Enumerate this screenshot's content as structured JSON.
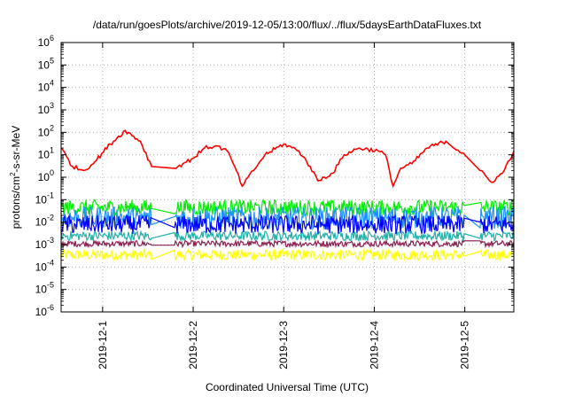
{
  "chart_data": {
    "type": "line",
    "title": "/data/run/goesPlots/archive/2019-12-05/13:00/flux/../flux/5daysEarthDataFluxes.txt",
    "xlabel": "Coordinated Universal Time (UTC)",
    "ylabel": "protons/cm²-s-sr-MeV",
    "ylabel_parts": {
      "pre": "protons/cm",
      "sup": "2",
      "post": "-s-sr-MeV"
    },
    "yscale": "log",
    "ylim": [
      1e-06,
      1000000.0
    ],
    "y_ticks": [
      {
        "base": "10",
        "exp": "-6"
      },
      {
        "base": "10",
        "exp": "-5"
      },
      {
        "base": "10",
        "exp": "-4"
      },
      {
        "base": "10",
        "exp": "-3"
      },
      {
        "base": "10",
        "exp": "-2"
      },
      {
        "base": "10",
        "exp": "-1"
      },
      {
        "base": "10",
        "exp": "0"
      },
      {
        "base": "10",
        "exp": "1"
      },
      {
        "base": "10",
        "exp": "2"
      },
      {
        "base": "10",
        "exp": "3"
      },
      {
        "base": "10",
        "exp": "4"
      },
      {
        "base": "10",
        "exp": "5"
      },
      {
        "base": "10",
        "exp": "6"
      }
    ],
    "xlim": [
      "2019-11-30 13:00",
      "2019-12-05 13:00"
    ],
    "x_ticks": [
      "2019-12-1",
      "2019-12-2",
      "2019-12-3",
      "2019-12-4",
      "2019-12-5"
    ],
    "grid": true,
    "series": [
      {
        "color": "#ff0000",
        "x": [
          "2019-11-30 13:00",
          "2019-11-30 16:00",
          "2019-11-30 19:00",
          "2019-11-30 22:00",
          "2019-12-01 02:00",
          "2019-12-01 06:00",
          "2019-12-01 10:00",
          "2019-12-01 13:00",
          "2019-12-01 19:00",
          "2019-12-02 00:00",
          "2019-12-02 03:00",
          "2019-12-02 06:00",
          "2019-12-02 09:00",
          "2019-12-02 11:00",
          "2019-12-02 13:00",
          "2019-12-02 16:00",
          "2019-12-02 19:00",
          "2019-12-03 00:00",
          "2019-12-03 04:00",
          "2019-12-03 07:00",
          "2019-12-03 09:00",
          "2019-12-03 13:00",
          "2019-12-03 16:00",
          "2019-12-03 20:00",
          "2019-12-04 01:00",
          "2019-12-04 03:00",
          "2019-12-04 05:00",
          "2019-12-04 07:00",
          "2019-12-04 10:00",
          "2019-12-04 14:00",
          "2019-12-04 19:00",
          "2019-12-05 00:00",
          "2019-12-05 04:00",
          "2019-12-05 07:00",
          "2019-12-05 10:00",
          "2019-12-05 13:00"
        ],
        "values": [
          20,
          3,
          2,
          5,
          30,
          120,
          40,
          3,
          2.5,
          7,
          20,
          25,
          15,
          3,
          0.4,
          2,
          10,
          30,
          15,
          3,
          0.7,
          1.5,
          10,
          20,
          15,
          10,
          0.4,
          2.5,
          4,
          20,
          40,
          10,
          2,
          0.6,
          1.5,
          15
        ]
      },
      {
        "color": "#00ee00",
        "band": [
          0.02,
          0.1
        ],
        "note": "noisy band"
      },
      {
        "color": "#1e90ff",
        "band": [
          0.005,
          0.05
        ],
        "note": "noisy band"
      },
      {
        "color": "#0000ff",
        "band": [
          0.003,
          0.02
        ],
        "note": "noisy band"
      },
      {
        "color": "#20b2aa",
        "band": [
          0.0015,
          0.004
        ],
        "note": "noisy band"
      },
      {
        "color": "#8b2252",
        "band": [
          0.0008,
          0.0015
        ],
        "note": "noisy band"
      },
      {
        "color": "#ffff00",
        "band": [
          0.0002,
          0.0006
        ],
        "note": "noisy band"
      }
    ],
    "data_gaps": [
      [
        "2019-12-01 13:00",
        "2019-12-01 19:00"
      ],
      [
        "2019-12-05 00:00",
        "2019-12-05 04:00"
      ]
    ]
  }
}
